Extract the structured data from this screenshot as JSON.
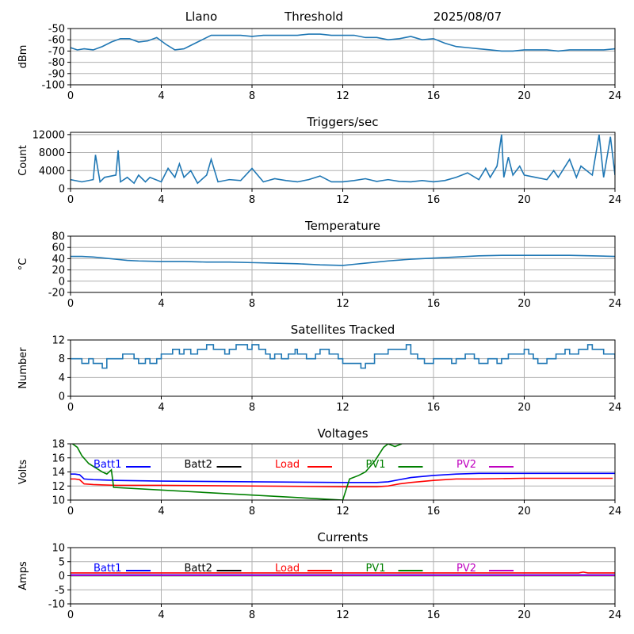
{
  "header": {
    "left": "Llano",
    "center": "Threshold",
    "right": "2025/08/07"
  },
  "colors": {
    "signal": "#1f77b4",
    "batt1": "#0000ff",
    "batt2": "#000000",
    "load": "#ff0000",
    "pv1": "#008000",
    "pv2": "#bf00bf",
    "grid": "#b0b0b0"
  },
  "chart_data": [
    {
      "type": "line",
      "title": "",
      "ylabel": "dBm",
      "xlim": [
        0,
        24
      ],
      "ylim": [
        -100,
        -50
      ],
      "xticks": [
        0,
        4,
        8,
        12,
        16,
        20,
        24
      ],
      "yticks": [
        -100,
        -90,
        -80,
        -70,
        -60,
        -50
      ],
      "grid": true,
      "series": [
        {
          "x": [
            0,
            0.3,
            0.6,
            1,
            1.4,
            1.8,
            2.2,
            2.6,
            3,
            3.4,
            3.8,
            4.2,
            4.6,
            5,
            5.4,
            5.8,
            6.2,
            6.6,
            7,
            7.5,
            8,
            8.5,
            9,
            9.5,
            10,
            10.5,
            11,
            11.5,
            12,
            12.5,
            13,
            13.5,
            14,
            14.5,
            15,
            15.5,
            16,
            16.5,
            17,
            17.5,
            18,
            18.5,
            19,
            19.5,
            20,
            20.5,
            21,
            21.5,
            22,
            22.5,
            23,
            23.5,
            24
          ],
          "y": [
            -67,
            -69,
            -68,
            -69,
            -66,
            -62,
            -59,
            -59,
            -62,
            -61,
            -58,
            -64,
            -69,
            -68,
            -64,
            -60,
            -56,
            -56,
            -56,
            -56,
            -57,
            -56,
            -56,
            -56,
            -56,
            -55,
            -55,
            -56,
            -56,
            -56,
            -58,
            -58,
            -60,
            -59,
            -57,
            -60,
            -59,
            -63,
            -66,
            -67,
            -68,
            -69,
            -70,
            -70,
            -69,
            -69,
            -69,
            -70,
            -69,
            -69,
            -69,
            -69,
            -68
          ]
        }
      ]
    },
    {
      "type": "line",
      "title": "Triggers/sec",
      "ylabel": "Count",
      "xlim": [
        0,
        24
      ],
      "ylim": [
        0,
        12500
      ],
      "xticks": [
        0,
        4,
        8,
        12,
        16,
        20,
        24
      ],
      "yticks": [
        0,
        4000,
        8000,
        12000
      ],
      "grid": true,
      "series": [
        {
          "x": [
            0,
            0.5,
            1,
            1.1,
            1.3,
            1.5,
            2,
            2.1,
            2.2,
            2.5,
            2.8,
            3,
            3.3,
            3.5,
            4,
            4.3,
            4.6,
            4.8,
            5,
            5.3,
            5.6,
            6,
            6.2,
            6.5,
            7,
            7.5,
            8,
            8.5,
            9,
            9.5,
            10,
            10.5,
            11,
            11.5,
            12,
            12.5,
            13,
            13.5,
            14,
            14.5,
            15,
            15.5,
            16,
            16.5,
            17,
            17.5,
            18,
            18.3,
            18.5,
            18.8,
            19,
            19.1,
            19.3,
            19.5,
            19.8,
            20,
            20.5,
            21,
            21.3,
            21.5,
            22,
            22.3,
            22.5,
            23,
            23.3,
            23.5,
            23.8,
            24
          ],
          "y": [
            2000,
            1500,
            2000,
            7500,
            1500,
            2500,
            3000,
            8500,
            1500,
            2500,
            1200,
            3000,
            1500,
            2500,
            1500,
            4500,
            2500,
            5500,
            2500,
            4000,
            1200,
            3000,
            6500,
            1500,
            2000,
            1800,
            4500,
            1500,
            2200,
            1800,
            1500,
            2000,
            2800,
            1500,
            1500,
            1800,
            2200,
            1600,
            2000,
            1600,
            1500,
            1800,
            1500,
            1800,
            2500,
            3500,
            2000,
            4500,
            2500,
            5000,
            12000,
            2500,
            7000,
            3000,
            5000,
            3000,
            2500,
            2000,
            4000,
            2500,
            6500,
            2500,
            5000,
            3000,
            12000,
            2500,
            11500,
            3000
          ]
        }
      ]
    },
    {
      "type": "line",
      "title": "Temperature",
      "ylabel": "°C",
      "xlim": [
        0,
        24
      ],
      "ylim": [
        -20,
        80
      ],
      "xticks": [
        0,
        4,
        8,
        12,
        16,
        20,
        24
      ],
      "yticks": [
        -20,
        0,
        20,
        40,
        60,
        80
      ],
      "grid": true,
      "series": [
        {
          "x": [
            0,
            0.5,
            1,
            1.5,
            2,
            2.5,
            3,
            4,
            5,
            6,
            7,
            8,
            9,
            10,
            11,
            12,
            12.5,
            13,
            13.5,
            14,
            15,
            16,
            17,
            18,
            19,
            20,
            21,
            22,
            23,
            24
          ],
          "y": [
            44,
            44,
            43,
            41,
            39,
            37,
            36,
            35,
            35,
            34,
            34,
            33,
            32,
            31,
            29,
            28,
            30,
            32,
            34,
            36,
            39,
            41,
            43,
            45,
            46,
            46,
            46,
            46,
            45,
            44
          ]
        }
      ]
    },
    {
      "type": "line",
      "title": "Satellites Tracked",
      "ylabel": "Number",
      "xlim": [
        0,
        24
      ],
      "ylim": [
        0,
        12
      ],
      "xticks": [
        0,
        4,
        8,
        12,
        16,
        20,
        24
      ],
      "yticks": [
        0,
        4,
        8,
        12
      ],
      "grid": true,
      "step": true,
      "series": [
        {
          "x": [
            0,
            0.5,
            0.8,
            1,
            1.4,
            1.6,
            1.8,
            2.3,
            2.8,
            3,
            3.3,
            3.5,
            3.8,
            4,
            4.5,
            4.8,
            5,
            5.3,
            5.6,
            6,
            6.3,
            6.8,
            7,
            7.3,
            7.8,
            8,
            8.3,
            8.6,
            8.8,
            9,
            9.3,
            9.6,
            9.9,
            10,
            10.4,
            10.8,
            11,
            11.4,
            11.8,
            12,
            12.4,
            12.8,
            13,
            13.4,
            13.8,
            14,
            14.4,
            14.8,
            15,
            15.3,
            15.6,
            16,
            16.4,
            16.8,
            17,
            17.4,
            17.8,
            18,
            18.4,
            18.8,
            19,
            19.3,
            19.6,
            20,
            20.2,
            20.4,
            20.6,
            21,
            21.4,
            21.8,
            22,
            22.4,
            22.8,
            23,
            23.5,
            24
          ],
          "y": [
            8,
            7,
            8,
            7,
            6,
            8,
            8,
            9,
            8,
            7,
            8,
            7,
            8,
            9,
            10,
            9,
            10,
            9,
            10,
            11,
            10,
            9,
            10,
            11,
            10,
            11,
            10,
            9,
            8,
            9,
            8,
            9,
            10,
            9,
            8,
            9,
            10,
            9,
            8,
            7,
            7,
            6,
            7,
            9,
            9,
            10,
            10,
            11,
            9,
            8,
            7,
            8,
            8,
            7,
            8,
            9,
            8,
            7,
            8,
            7,
            8,
            9,
            9,
            10,
            9,
            8,
            7,
            8,
            9,
            10,
            9,
            10,
            11,
            10,
            9,
            8
          ]
        }
      ]
    },
    {
      "type": "line",
      "title": "Voltages",
      "ylabel": "Volts",
      "xlim": [
        0,
        24
      ],
      "ylim": [
        10,
        18
      ],
      "xticks": [
        0,
        4,
        8,
        12,
        16,
        20,
        24
      ],
      "yticks": [
        10,
        12,
        14,
        16,
        18
      ],
      "grid": true,
      "series": [
        {
          "name": "Batt1",
          "color_key": "batt1",
          "x": [
            0,
            0.2,
            0.4,
            0.6,
            1,
            2,
            4,
            8,
            12,
            13,
            13.5,
            14,
            14.5,
            15,
            16,
            17,
            18,
            20,
            24
          ],
          "y": [
            13.7,
            13.7,
            13.6,
            13.0,
            12.9,
            12.8,
            12.7,
            12.6,
            12.5,
            12.5,
            12.5,
            12.6,
            12.9,
            13.2,
            13.5,
            13.7,
            13.8,
            13.8,
            13.8
          ]
        },
        {
          "name": "Batt2",
          "color_key": "batt2",
          "x": [],
          "y": []
        },
        {
          "name": "Load",
          "color_key": "load",
          "x": [
            0,
            0.2,
            0.4,
            0.6,
            1,
            2,
            4,
            8,
            12,
            13,
            13.5,
            14,
            14.5,
            15,
            16,
            17,
            18,
            20,
            23.9
          ],
          "y": [
            13.0,
            13.0,
            12.9,
            12.3,
            12.2,
            12.1,
            12.1,
            12.0,
            11.9,
            11.9,
            11.9,
            12.0,
            12.3,
            12.5,
            12.8,
            13.0,
            13.0,
            13.1,
            13.1
          ]
        },
        {
          "name": "PV1",
          "color_key": "pv1",
          "x": [
            0,
            0.3,
            0.5,
            0.8,
            1.1,
            1.4,
            1.6,
            1.8,
            1.9,
            12,
            12.3,
            12.7,
            13,
            13.4,
            13.8,
            14,
            14.3,
            14.6
          ],
          "y": [
            18.2,
            17.5,
            16.3,
            15.2,
            14.6,
            14.0,
            13.7,
            14.3,
            11.8,
            10.0,
            13.0,
            13.5,
            14.0,
            15.5,
            17.5,
            18.0,
            17.6,
            18.0
          ]
        },
        {
          "name": "PV2",
          "color_key": "pv2",
          "x": [],
          "y": []
        }
      ]
    },
    {
      "type": "line",
      "title": "Currents",
      "ylabel": "Amps",
      "xlim": [
        0,
        24
      ],
      "ylim": [
        -10,
        10
      ],
      "xticks": [
        0,
        4,
        8,
        12,
        16,
        20,
        24
      ],
      "yticks": [
        -10,
        -5,
        0,
        5,
        10
      ],
      "grid": true,
      "series": [
        {
          "name": "Batt1",
          "color_key": "batt1",
          "x": [
            0,
            4,
            8,
            12,
            16,
            20,
            24
          ],
          "y": [
            0.3,
            0.3,
            0.3,
            0.3,
            0.3,
            0.3,
            0.3
          ]
        },
        {
          "name": "Batt2",
          "color_key": "batt2",
          "x": [],
          "y": []
        },
        {
          "name": "Load",
          "color_key": "load",
          "x": [
            0,
            4,
            8,
            12,
            16,
            20,
            22.4,
            22.6,
            22.8,
            24
          ],
          "y": [
            1.0,
            1.0,
            1.0,
            1.0,
            1.0,
            1.0,
            1.0,
            1.3,
            1.0,
            1.0
          ]
        },
        {
          "name": "PV1",
          "color_key": "pv1",
          "x": [
            0,
            4,
            8,
            12,
            16,
            20,
            24
          ],
          "y": [
            0,
            0,
            0,
            0,
            0,
            0,
            0
          ]
        },
        {
          "name": "PV2",
          "color_key": "pv2",
          "x": [
            0,
            4,
            8,
            12,
            16,
            20,
            24
          ],
          "y": [
            0.1,
            0.1,
            0.1,
            0.1,
            0.1,
            0.1,
            0.1
          ]
        }
      ]
    }
  ]
}
